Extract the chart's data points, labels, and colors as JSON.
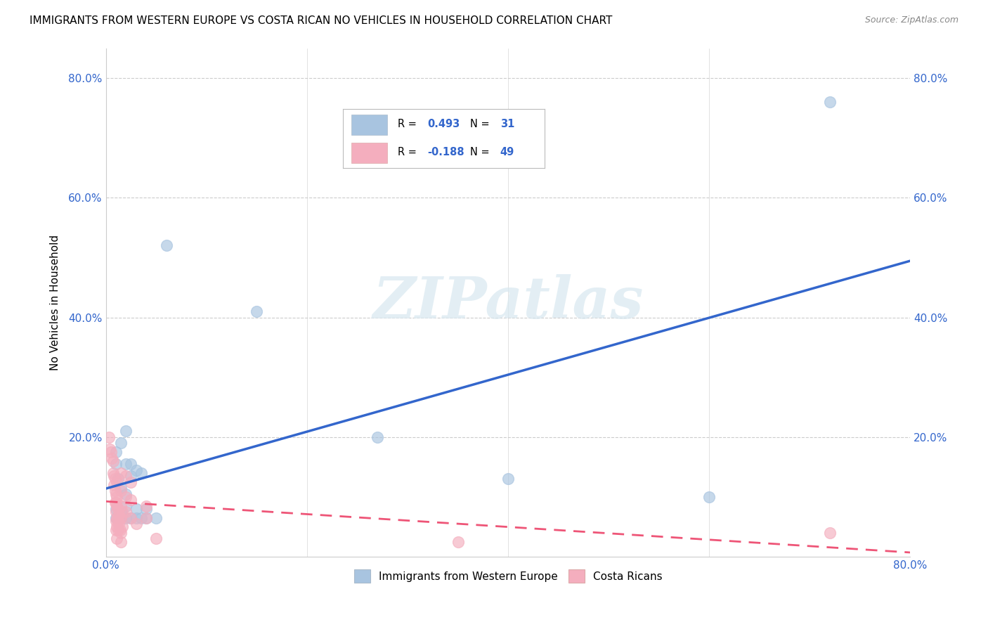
{
  "title": "IMMIGRANTS FROM WESTERN EUROPE VS COSTA RICAN NO VEHICLES IN HOUSEHOLD CORRELATION CHART",
  "source": "Source: ZipAtlas.com",
  "ylabel": "No Vehicles in Household",
  "legend_bottom": [
    "Immigrants from Western Europe",
    "Costa Ricans"
  ],
  "blue_R": "0.493",
  "blue_N": "31",
  "pink_R": "-0.188",
  "pink_N": "49",
  "blue_color": "#A8C4E0",
  "pink_color": "#F4AEBE",
  "blue_line_color": "#3366CC",
  "pink_line_color": "#EE5577",
  "blue_points": [
    [
      1.0,
      17.5
    ],
    [
      1.0,
      15.5
    ],
    [
      1.2,
      13.0
    ],
    [
      1.0,
      8.0
    ],
    [
      1.0,
      6.5
    ],
    [
      1.5,
      19.0
    ],
    [
      1.5,
      11.5
    ],
    [
      1.5,
      7.5
    ],
    [
      1.5,
      6.5
    ],
    [
      2.0,
      21.0
    ],
    [
      2.0,
      15.5
    ],
    [
      2.0,
      10.5
    ],
    [
      2.0,
      8.5
    ],
    [
      2.0,
      6.5
    ],
    [
      2.5,
      15.5
    ],
    [
      2.5,
      13.5
    ],
    [
      2.5,
      6.5
    ],
    [
      3.0,
      14.5
    ],
    [
      3.0,
      8.0
    ],
    [
      3.0,
      6.5
    ],
    [
      3.5,
      14.0
    ],
    [
      3.5,
      6.5
    ],
    [
      4.0,
      8.0
    ],
    [
      4.0,
      6.5
    ],
    [
      5.0,
      6.5
    ],
    [
      6.0,
      52.0
    ],
    [
      15.0,
      41.0
    ],
    [
      27.0,
      20.0
    ],
    [
      40.0,
      13.0
    ],
    [
      60.0,
      10.0
    ],
    [
      72.0,
      76.0
    ]
  ],
  "pink_points": [
    [
      0.3,
      20.0
    ],
    [
      0.4,
      18.0
    ],
    [
      0.5,
      17.5
    ],
    [
      0.6,
      16.5
    ],
    [
      0.7,
      16.0
    ],
    [
      0.7,
      14.0
    ],
    [
      0.8,
      13.5
    ],
    [
      0.8,
      12.0
    ],
    [
      0.9,
      13.0
    ],
    [
      0.9,
      11.0
    ],
    [
      0.9,
      9.0
    ],
    [
      1.0,
      10.5
    ],
    [
      1.0,
      9.0
    ],
    [
      1.0,
      7.5
    ],
    [
      1.0,
      6.0
    ],
    [
      1.0,
      4.5
    ],
    [
      1.1,
      12.5
    ],
    [
      1.1,
      10.0
    ],
    [
      1.1,
      8.5
    ],
    [
      1.1,
      6.5
    ],
    [
      1.1,
      5.0
    ],
    [
      1.1,
      3.0
    ],
    [
      1.2,
      8.0
    ],
    [
      1.2,
      6.0
    ],
    [
      1.2,
      4.5
    ],
    [
      1.3,
      7.0
    ],
    [
      1.3,
      5.5
    ],
    [
      1.4,
      6.5
    ],
    [
      1.4,
      4.5
    ],
    [
      1.5,
      14.0
    ],
    [
      1.5,
      11.0
    ],
    [
      1.5,
      8.5
    ],
    [
      1.5,
      6.5
    ],
    [
      1.5,
      4.0
    ],
    [
      1.5,
      2.5
    ],
    [
      1.6,
      7.5
    ],
    [
      1.6,
      5.0
    ],
    [
      2.0,
      13.5
    ],
    [
      2.0,
      10.0
    ],
    [
      2.0,
      7.5
    ],
    [
      2.5,
      12.5
    ],
    [
      2.5,
      9.5
    ],
    [
      2.5,
      6.5
    ],
    [
      3.0,
      5.5
    ],
    [
      4.0,
      8.5
    ],
    [
      4.0,
      6.5
    ],
    [
      5.0,
      3.0
    ],
    [
      35.0,
      2.5
    ],
    [
      72.0,
      4.0
    ]
  ],
  "xlim": [
    0.0,
    80.0
  ],
  "ylim": [
    0.0,
    85.0
  ],
  "xticks": [
    0.0,
    20.0,
    40.0,
    60.0,
    80.0
  ],
  "xticklabels": [
    "0.0%",
    "",
    "",
    "",
    "80.0%"
  ],
  "yticks": [
    0.0,
    20.0,
    40.0,
    60.0,
    80.0
  ],
  "yticklabels_left": [
    "",
    "20.0%",
    "40.0%",
    "60.0%",
    "80.0%"
  ],
  "yticklabels_right": [
    "20.0%",
    "40.0%",
    "60.0%",
    "80.0%"
  ],
  "grid_color": "#CCCCCC",
  "background_color": "#FFFFFF",
  "watermark_text": "ZIPatlas"
}
